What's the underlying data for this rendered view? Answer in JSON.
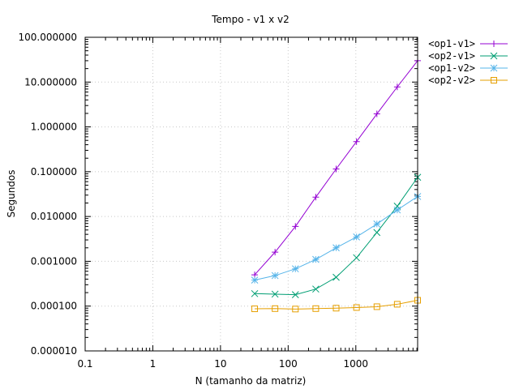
{
  "chart_data": {
    "type": "line",
    "title": "Tempo - v1 x v2",
    "xlabel": "N (tamanho da matriz)",
    "ylabel": "Segundos",
    "xscale": "log",
    "yscale": "log",
    "xlim": [
      0.1,
      8192
    ],
    "ylim": [
      1e-05,
      100
    ],
    "grid": true,
    "legend_position": "top-right-outside",
    "xticks": [
      {
        "v": 0.1,
        "label": "0.1"
      },
      {
        "v": 1,
        "label": "1"
      },
      {
        "v": 10,
        "label": "10"
      },
      {
        "v": 100,
        "label": "100"
      },
      {
        "v": 1000,
        "label": "1000"
      }
    ],
    "yticks": [
      {
        "v": 1e-05,
        "label": "0.000010"
      },
      {
        "v": 0.0001,
        "label": "0.000100"
      },
      {
        "v": 0.001,
        "label": "0.001000"
      },
      {
        "v": 0.01,
        "label": "0.010000"
      },
      {
        "v": 0.1,
        "label": "0.100000"
      },
      {
        "v": 1,
        "label": "1.000000"
      },
      {
        "v": 10,
        "label": "10.000000"
      },
      {
        "v": 100,
        "label": "100.000000"
      }
    ],
    "x": [
      32,
      64,
      128,
      256,
      512,
      1024,
      2048,
      4096,
      8192
    ],
    "series": [
      {
        "name": "<op1-v1>",
        "color": "#9400d3",
        "marker": "plus",
        "values": [
          0.0005,
          0.0016,
          0.006,
          0.027,
          0.115,
          0.47,
          1.95,
          7.8,
          30
        ]
      },
      {
        "name": "<op2-v1>",
        "color": "#009e73",
        "marker": "cross",
        "values": [
          0.00019,
          0.000185,
          0.00018,
          0.00024,
          0.00044,
          0.0012,
          0.0044,
          0.017,
          0.075
        ]
      },
      {
        "name": "<op1-v2>",
        "color": "#56b4e9",
        "marker": "star",
        "values": [
          0.00038,
          0.00048,
          0.00068,
          0.0011,
          0.002,
          0.0035,
          0.0068,
          0.014,
          0.028
        ]
      },
      {
        "name": "<op2-v2>",
        "color": "#e69f00",
        "marker": "box",
        "values": [
          8.7e-05,
          8.8e-05,
          8.6e-05,
          8.8e-05,
          9e-05,
          9.3e-05,
          9.7e-05,
          0.00011,
          0.000135
        ]
      }
    ]
  }
}
